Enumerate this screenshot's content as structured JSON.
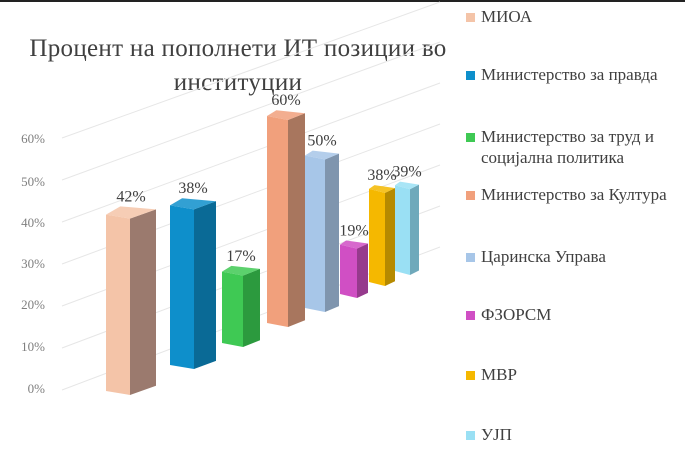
{
  "chart_data": {
    "type": "bar",
    "title": "Процент на пополнети ИТ позиции во институции",
    "categories": [
      "МИОА",
      "Министерство за правда",
      "Министерство за труд и социјална политика",
      "Министерство за Култура",
      "Царинска Управа",
      "ФЗОРСМ",
      "МВР",
      "УЈП"
    ],
    "values": [
      42,
      38,
      17,
      60,
      50,
      19,
      38,
      39
    ],
    "value_labels": [
      "42%",
      "38%",
      "17%",
      "60%",
      "50%",
      "19%",
      "38%",
      "39%"
    ],
    "colors": [
      "#F4C4A8",
      "#0E8FCB",
      "#3FC954",
      "#F1A07C",
      "#A7C6E8",
      "#D04FC4",
      "#F5B800",
      "#9AE0F4"
    ],
    "side_colors": [
      "#9B7A6E",
      "#0A6A96",
      "#2C9A3E",
      "#A8765E",
      "#7F95AE",
      "#963A8D",
      "#B68A00",
      "#6FA9BB"
    ],
    "yticks": [
      "0%",
      "10%",
      "20%",
      "30%",
      "40%",
      "50%",
      "60%"
    ],
    "ylim": [
      0,
      60
    ],
    "legend_position": "right",
    "grid": true,
    "style": "3d-perspective"
  }
}
